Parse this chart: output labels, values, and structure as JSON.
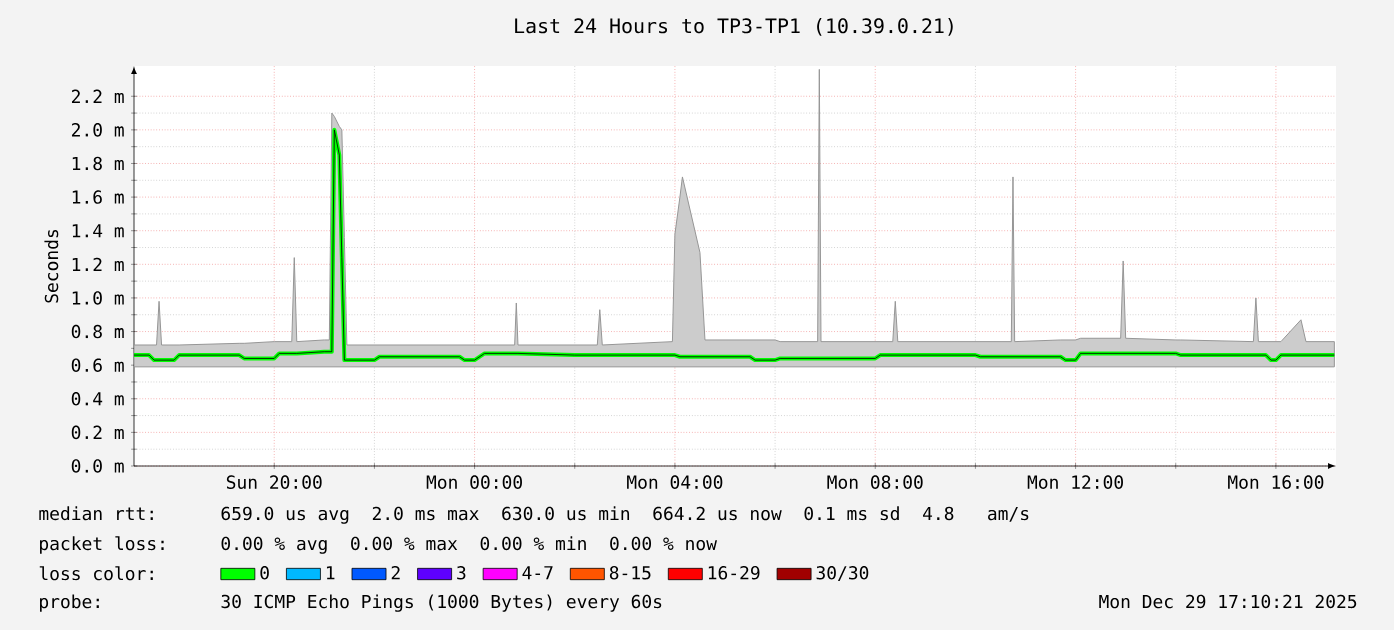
{
  "chart_data": {
    "type": "line",
    "title": "Last 24 Hours to TP3-TP1 (10.39.0.21)",
    "ylabel": "Seconds",
    "xlim": [
      "2025-12-28T17:12",
      "2025-12-29T17:12"
    ],
    "ylim": [
      0,
      2.38
    ],
    "xticks": [
      {
        "value": "2025-12-28T20:00",
        "label": "Sun 20:00"
      },
      {
        "value": "2025-12-29T00:00",
        "label": "Mon 00:00"
      },
      {
        "value": "2025-12-29T04:00",
        "label": "Mon 04:00"
      },
      {
        "value": "2025-12-29T08:00",
        "label": "Mon 08:00"
      },
      {
        "value": "2025-12-29T12:00",
        "label": "Mon 12:00"
      },
      {
        "value": "2025-12-29T16:00",
        "label": "Mon 16:00"
      }
    ],
    "yticks": [
      {
        "value": 0,
        "label": "0.0 m"
      },
      {
        "value": 0.2,
        "label": "0.2 m"
      },
      {
        "value": 0.4,
        "label": "0.4 m"
      },
      {
        "value": 0.6,
        "label": "0.6 m"
      },
      {
        "value": 0.8,
        "label": "0.8 m"
      },
      {
        "value": 1.0,
        "label": "1.0 m"
      },
      {
        "value": 1.2,
        "label": "1.2 m"
      },
      {
        "value": 1.4,
        "label": "1.4 m"
      },
      {
        "value": 1.6,
        "label": "1.6 m"
      },
      {
        "value": 1.8,
        "label": "1.8 m"
      },
      {
        "value": 2.0,
        "label": "2.0 m"
      },
      {
        "value": 2.2,
        "label": "2.2 m"
      }
    ],
    "grid": true,
    "legend": "bottom",
    "legend_title": "loss color:",
    "series": [
      {
        "name": "0",
        "color": "#00ff00",
        "x": [
          "2025-12-28T17:12",
          "2025-12-28T17:30",
          "2025-12-28T17:36",
          "2025-12-28T17:39",
          "2025-12-28T17:42",
          "2025-12-28T17:45",
          "2025-12-28T18:00",
          "2025-12-28T18:06",
          "2025-12-28T19:18",
          "2025-12-28T19:24",
          "2025-12-28T20:00",
          "2025-12-28T20:06",
          "2025-12-28T20:21",
          "2025-12-28T20:24",
          "2025-12-28T20:27",
          "2025-12-28T21:00",
          "2025-12-28T21:06",
          "2025-12-28T21:09",
          "2025-12-28T21:12",
          "2025-12-28T21:18",
          "2025-12-28T21:21",
          "2025-12-28T21:24",
          "2025-12-28T21:27",
          "2025-12-28T22:00",
          "2025-12-28T22:06",
          "2025-12-28T23:42",
          "2025-12-28T23:48",
          "2025-12-29T00:00",
          "2025-12-29T00:12",
          "2025-12-29T00:48",
          "2025-12-29T00:50",
          "2025-12-29T00:52",
          "2025-12-29T02:00",
          "2025-12-29T02:06",
          "2025-12-29T02:27",
          "2025-12-29T02:30",
          "2025-12-29T02:33",
          "2025-12-29T03:57",
          "2025-12-29T04:00",
          "2025-12-29T04:06",
          "2025-12-29T04:09",
          "2025-12-29T04:30",
          "2025-12-29T04:36",
          "2025-12-29T05:30",
          "2025-12-29T05:36",
          "2025-12-29T06:00",
          "2025-12-29T06:06",
          "2025-12-29T06:51",
          "2025-12-29T06:53",
          "2025-12-29T06:55",
          "2025-12-29T08:00",
          "2025-12-29T08:06",
          "2025-12-29T08:21",
          "2025-12-29T08:24",
          "2025-12-29T08:27",
          "2025-12-29T10:00",
          "2025-12-29T10:06",
          "2025-12-29T10:43",
          "2025-12-29T10:45",
          "2025-12-29T10:47",
          "2025-12-29T11:42",
          "2025-12-29T11:48",
          "2025-12-29T12:00",
          "2025-12-29T12:06",
          "2025-12-29T12:54",
          "2025-12-29T12:57",
          "2025-12-29T13:00",
          "2025-12-29T14:00",
          "2025-12-29T14:06",
          "2025-12-29T15:33",
          "2025-12-29T15:36",
          "2025-12-29T15:39",
          "2025-12-29T15:48",
          "2025-12-29T15:54",
          "2025-12-29T16:00",
          "2025-12-29T16:06",
          "2025-12-29T16:30",
          "2025-12-29T16:36",
          "2025-12-29T17:10"
        ],
        "values": [
          0.66,
          0.66,
          0.63,
          0.63,
          0.63,
          0.63,
          0.63,
          0.66,
          0.66,
          0.64,
          0.64,
          0.67,
          0.67,
          0.67,
          0.67,
          0.68,
          0.68,
          0.68,
          2.0,
          1.85,
          1.24,
          0.63,
          0.63,
          0.63,
          0.65,
          0.65,
          0.63,
          0.63,
          0.67,
          0.67,
          0.67,
          0.67,
          0.66,
          0.66,
          0.66,
          0.66,
          0.66,
          0.66,
          0.66,
          0.65,
          0.65,
          0.65,
          0.65,
          0.65,
          0.63,
          0.63,
          0.64,
          0.64,
          0.64,
          0.64,
          0.64,
          0.66,
          0.66,
          0.66,
          0.66,
          0.66,
          0.65,
          0.65,
          0.65,
          0.65,
          0.65,
          0.63,
          0.63,
          0.67,
          0.67,
          0.67,
          0.67,
          0.67,
          0.66,
          0.66,
          0.66,
          0.66,
          0.66,
          0.63,
          0.63,
          0.66,
          0.66,
          0.66,
          0.66
        ],
        "lower": [
          0.59,
          0.59,
          0.59,
          0.59,
          0.59,
          0.59,
          0.59,
          0.59,
          0.59,
          0.59,
          0.59,
          0.59,
          0.59,
          0.59,
          0.59,
          0.59,
          0.59,
          0.59,
          0.59,
          0.59,
          0.59,
          0.59,
          0.59,
          0.59,
          0.59,
          0.59,
          0.59,
          0.59,
          0.59,
          0.59,
          0.59,
          0.59,
          0.59,
          0.59,
          0.59,
          0.59,
          0.59,
          0.59,
          0.59,
          0.59,
          0.59,
          0.59,
          0.59,
          0.59,
          0.59,
          0.59,
          0.59,
          0.59,
          0.59,
          0.59,
          0.59,
          0.59,
          0.59,
          0.59,
          0.59,
          0.59,
          0.59,
          0.59,
          0.59,
          0.59,
          0.59,
          0.59,
          0.59,
          0.59,
          0.59,
          0.59,
          0.59,
          0.59,
          0.59,
          0.59,
          0.59,
          0.59,
          0.59,
          0.59,
          0.59,
          0.59,
          0.59,
          0.59,
          0.59
        ],
        "upper": [
          0.72,
          0.72,
          0.72,
          0.72,
          0.98,
          0.72,
          0.72,
          0.72,
          0.73,
          0.73,
          0.74,
          0.74,
          0.74,
          1.24,
          0.74,
          0.75,
          0.75,
          2.1,
          2.08,
          2.02,
          2.0,
          1.36,
          0.72,
          0.72,
          0.72,
          0.72,
          0.72,
          0.72,
          0.72,
          0.72,
          0.97,
          0.72,
          0.72,
          0.72,
          0.72,
          0.93,
          0.72,
          0.74,
          1.38,
          1.6,
          1.72,
          1.27,
          0.75,
          0.75,
          0.75,
          0.75,
          0.74,
          0.74,
          2.36,
          0.74,
          0.74,
          0.74,
          0.74,
          0.98,
          0.74,
          0.74,
          0.74,
          0.74,
          1.72,
          0.74,
          0.75,
          0.75,
          0.75,
          0.76,
          0.76,
          1.22,
          0.76,
          0.75,
          0.75,
          0.74,
          1.0,
          0.74,
          0.74,
          0.74,
          0.74,
          0.74,
          0.87,
          0.74,
          0.74
        ]
      },
      {
        "name": "1",
        "color": "#00b8ff"
      },
      {
        "name": "2",
        "color": "#0059ff"
      },
      {
        "name": "3",
        "color": "#5e00ff"
      },
      {
        "name": "4-7",
        "color": "#ff00ff"
      },
      {
        "name": "8-15",
        "color": "#ff5500"
      },
      {
        "name": "16-29",
        "color": "#ff0000"
      },
      {
        "name": "30/30",
        "color": "#a10000"
      }
    ],
    "annotations": [
      "median rtt:",
      "659.0 us avg  2.0 ms max  630.0 us min  664.2 us now  0.1 ms sd  4.8   am/s",
      "packet loss:",
      "0.00 % avg  0.00 % max  0.00 % min  0.00 % now",
      "probe:",
      "30 ICMP Echo Pings (1000 Bytes) every 60s",
      "Mon Dec 29 17:10:21 2025"
    ]
  }
}
